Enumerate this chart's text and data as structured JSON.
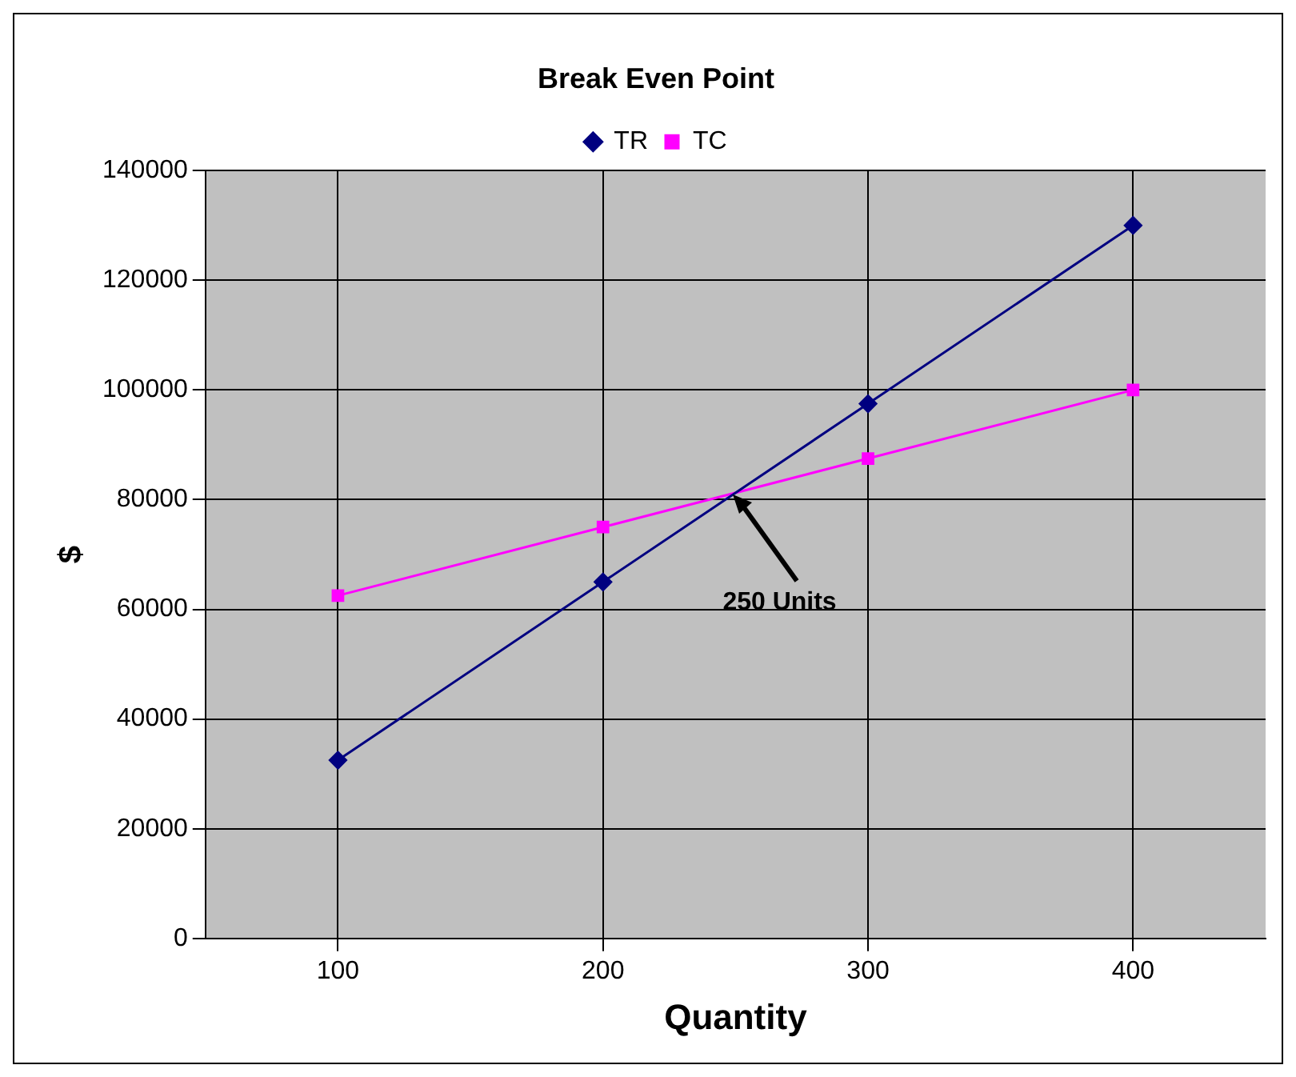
{
  "chart_data": {
    "type": "line",
    "title": "Break Even Point",
    "xlabel": "Quantity",
    "ylabel": "$",
    "categories": [
      "100",
      "200",
      "300",
      "400"
    ],
    "series": [
      {
        "name": "TR",
        "color": "#000080",
        "marker": "diamond",
        "values": [
          32500,
          65000,
          97500,
          130000
        ]
      },
      {
        "name": "TC",
        "color": "#ff00ff",
        "marker": "square",
        "values": [
          62500,
          75000,
          87500,
          100000
        ]
      }
    ],
    "ylim": [
      0,
      140000
    ],
    "yticks": [
      0,
      20000,
      40000,
      60000,
      80000,
      100000,
      120000,
      140000
    ],
    "grid": true,
    "legend": "top",
    "annotations": [
      "250 Units"
    ]
  }
}
